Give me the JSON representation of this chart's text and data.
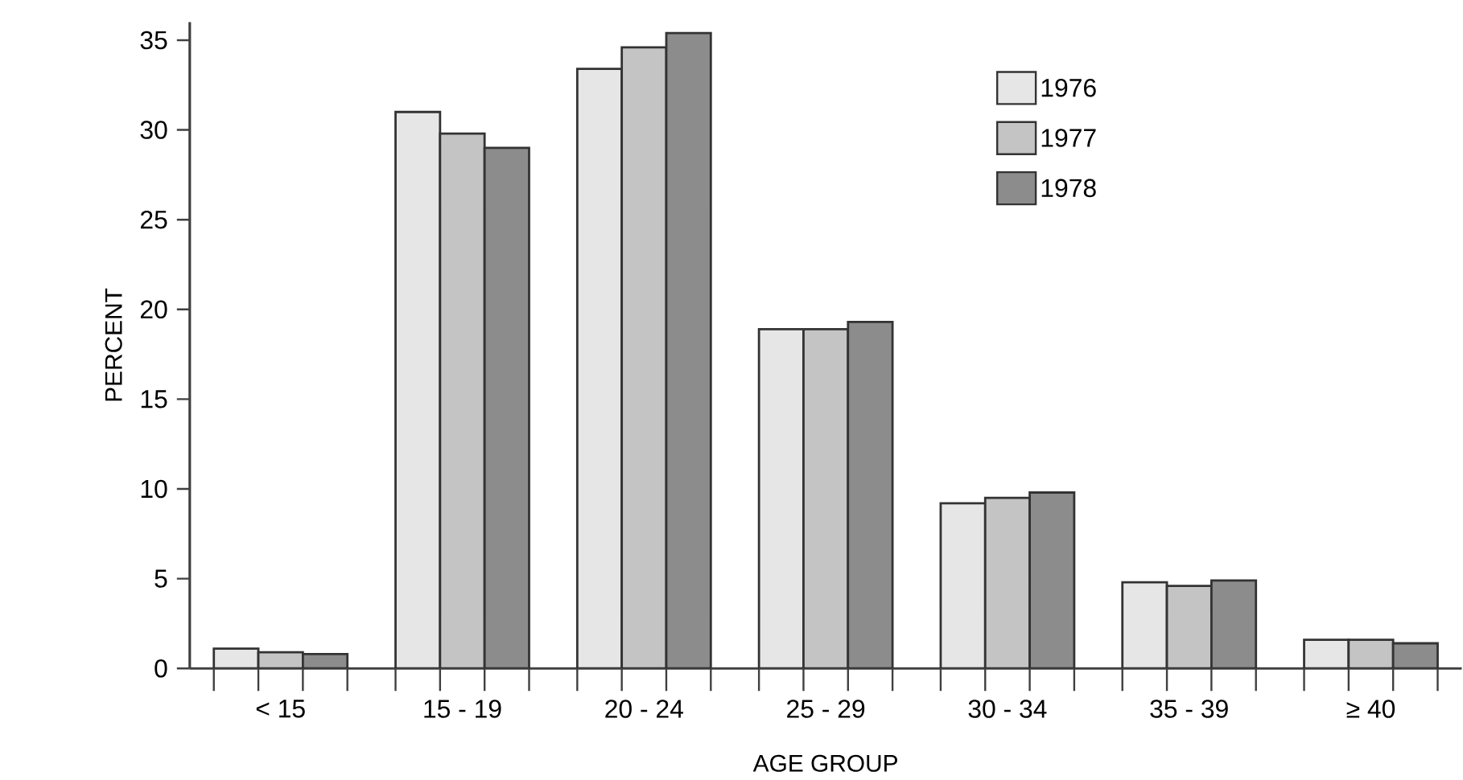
{
  "chart_data": {
    "type": "bar",
    "xlabel": "AGE GROUP",
    "ylabel": "PERCENT",
    "categories": [
      "< 15",
      "15 - 19",
      "20 - 24",
      "25 - 29",
      "30 - 34",
      "35 - 39",
      "≥ 40"
    ],
    "series": [
      {
        "name": "1976",
        "color": "#e6e6e6",
        "values": [
          1.1,
          31.0,
          33.4,
          18.9,
          9.2,
          4.8,
          1.6
        ]
      },
      {
        "name": "1977",
        "color": "#c4c4c4",
        "values": [
          0.9,
          29.8,
          34.6,
          18.9,
          9.5,
          4.6,
          1.6
        ]
      },
      {
        "name": "1978",
        "color": "#8c8c8c",
        "values": [
          0.8,
          29.0,
          35.4,
          19.3,
          9.8,
          4.9,
          1.4
        ]
      }
    ],
    "ylim": [
      0,
      36
    ],
    "yticks": [
      0,
      5,
      10,
      15,
      20,
      25,
      30,
      35
    ],
    "grid": false,
    "legend": "top right"
  }
}
